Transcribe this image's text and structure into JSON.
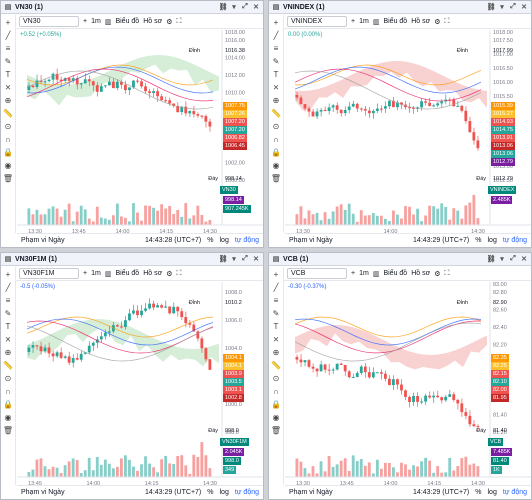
{
  "panels": [
    {
      "title": "VN30 (1)",
      "symbol": "VN30",
      "interval": "1m",
      "chart_menu": "Biểu đồ",
      "profile_menu": "Hồ sơ",
      "change": "+0.52 (+0.05%)",
      "high_label": "Đỉnh",
      "high_value": "1016.38",
      "low_label": "Đáy",
      "low_value": "998.14",
      "axis_top": "1018.00",
      "axis_ticks": [
        "1016.00",
        "1014.00",
        "1012.00",
        "1010.00",
        "1008.00",
        "1006.00",
        "1004.00",
        "1002.00",
        "1000.00"
      ],
      "price_labels": [
        "1007.75",
        "1007.26",
        "1007.20",
        "1007.20",
        "1006.82",
        "1006.45"
      ],
      "bottom_labels": [
        "998.14",
        "907.245K"
      ],
      "symbol_tag": "VN30",
      "time_ticks": [
        "13:30",
        "13:45",
        "14:00",
        "14:15",
        "14:30"
      ],
      "range": "Phạm vi Ngày",
      "clock": "14:43:28 (UTC+7)",
      "scale_pct": "%",
      "scale_log": "log",
      "scale_auto": "tự động"
    },
    {
      "title": "VNINDEX (1)",
      "symbol": "VNINDEX",
      "interval": "1m",
      "chart_menu": "Biểu đồ",
      "profile_menu": "Hồ sơ",
      "change": "0.00 (0.00%)",
      "high_label": "Đỉnh",
      "high_value": "1017.99",
      "low_label": "Đáy",
      "low_value": "1012.79",
      "axis_top": "1018.00",
      "axis_ticks": [
        "1017.50",
        "1017.00",
        "1016.50",
        "1016.00",
        "1015.50",
        "1015.00",
        "1014.50",
        "1014.00",
        "1013.50",
        "1013.00",
        "1012.50"
      ],
      "price_labels": [
        "1015.39",
        "1015.27",
        "1014.93",
        "1014.75",
        "1013.91",
        "1013.06",
        "1013.06",
        "1012.79"
      ],
      "bottom_labels": [
        "2.485K"
      ],
      "symbol_tag": "VNINDEX",
      "time_ticks": [
        "13:30",
        "14:00",
        "14:30"
      ],
      "range": "Phạm vi Ngày",
      "clock": "14:43:29 (UTC+7)",
      "scale_pct": "%",
      "scale_log": "log",
      "scale_auto": "tự động"
    },
    {
      "title": "VN30F1M (1)",
      "symbol": "VN30F1M",
      "interval": "1m",
      "chart_menu": "Biểu đồ",
      "profile_menu": "Hồ sơ",
      "change": "-0.5 (-0.05%)",
      "high_label": "Đỉnh",
      "high_value": "1010.2",
      "low_label": "Đáy",
      "low_value": "998.0",
      "axis_top": "",
      "axis_ticks": [
        "1008.0",
        "1006.0",
        "1004.0",
        "1002.0",
        "1000.0",
        "998.0"
      ],
      "price_labels": [
        "1004.1",
        "1004.1",
        "1003.9",
        "1003.5",
        "1003.1",
        "1002.8"
      ],
      "bottom_labels": [
        "2.045K",
        "998.0",
        "349"
      ],
      "symbol_tag": "VN30F1M",
      "time_ticks": [
        "13:45",
        "14:00",
        "14:15",
        "14:30"
      ],
      "range": "Phạm vi Ngày",
      "clock": "14:43:29 (UTC+7)",
      "scale_pct": "%",
      "scale_log": "log",
      "scale_auto": "tự động"
    },
    {
      "title": "VCB (1)",
      "symbol": "VCB",
      "interval": "1m",
      "chart_menu": "Biểu đồ",
      "profile_menu": "Hồ sơ",
      "change": "-0.30 (-0.37%)",
      "high_label": "Đỉnh",
      "high_value": "82.90",
      "low_label": "Đáy",
      "low_value": "81.40",
      "axis_top": "83.00",
      "axis_ticks": [
        "82.80",
        "82.60",
        "82.40",
        "82.20",
        "82.00",
        "81.80",
        "81.60",
        "81.40",
        "81.20"
      ],
      "price_labels": [
        "82.35",
        "82.25",
        "82.15",
        "82.10",
        "82.00",
        "81.95"
      ],
      "bottom_labels": [
        "7.485K",
        "81.40",
        "1K"
      ],
      "symbol_tag": "VCB",
      "time_ticks": [
        "13:30",
        "13:45",
        "14:00",
        "14:15",
        "14:30"
      ],
      "range": "Phạm vi Ngày",
      "clock": "14:43:29 (UTC+7)",
      "scale_pct": "%",
      "scale_log": "log",
      "scale_auto": "tự động"
    }
  ],
  "colors": {
    "up": "#26a69a",
    "down": "#ef5350",
    "cloud_up": "#a5d6a7",
    "cloud_down": "#ef9a9a",
    "accent": "#2962ff",
    "orange": "#ff9800"
  },
  "icons": [
    "crosshair-icon",
    "trend-line-icon",
    "fib-icon",
    "brush-icon",
    "text-icon",
    "pattern-icon",
    "forecast-icon",
    "ruler-icon",
    "zoom-icon",
    "magnet-icon",
    "lock-icon",
    "eye-icon",
    "trash-icon"
  ]
}
